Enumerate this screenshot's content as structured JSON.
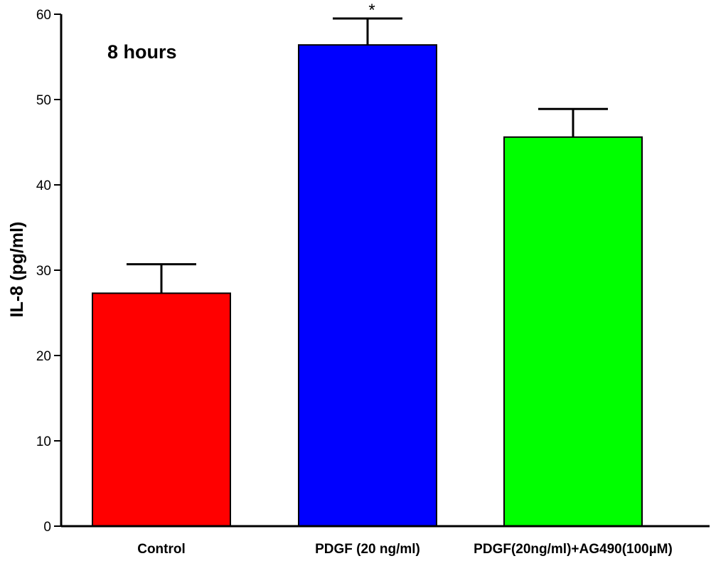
{
  "chart_data": {
    "type": "bar",
    "title": "8 hours",
    "ylabel": "IL-8 (pg/ml)",
    "xlabel": "",
    "ylim": [
      0,
      60
    ],
    "yticks": [
      0,
      10,
      20,
      30,
      40,
      50,
      60
    ],
    "categories": [
      "Control",
      "PDGF (20 ng/ml)",
      "PDGF(20ng/ml)+AG490(100µM)"
    ],
    "values": [
      27.3,
      56.4,
      45.6
    ],
    "errors": [
      3.4,
      3.1,
      3.3
    ],
    "colors": [
      "#ff0000",
      "#0000ff",
      "#00ff00"
    ],
    "annotations": [
      "",
      "*",
      ""
    ],
    "grid": false,
    "legend": "none"
  }
}
